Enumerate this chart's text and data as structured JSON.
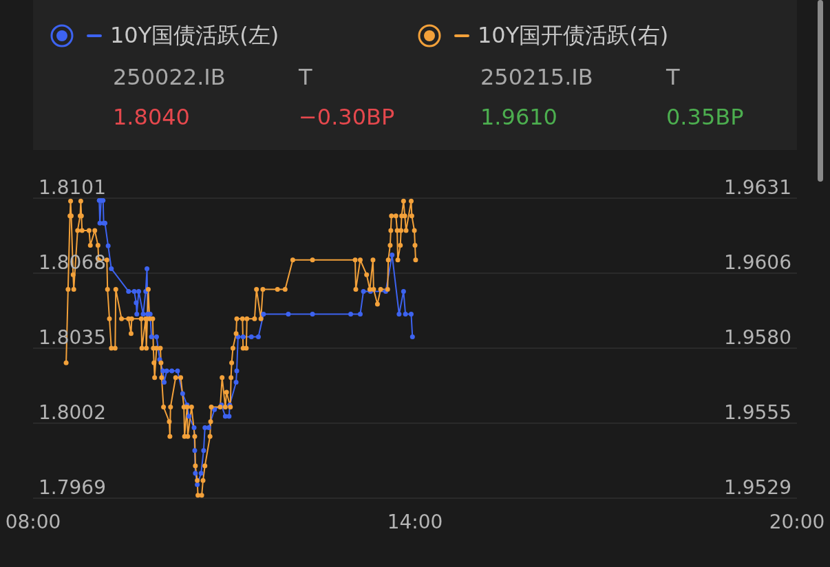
{
  "chart_data": {
    "type": "line",
    "legend": "top",
    "grid": "y",
    "marker": "circle",
    "line_style": "solid",
    "annotations": [
      "250022.IB",
      "T",
      "1.8040",
      "−0.30BP",
      "250215.IB",
      "T",
      "1.9610",
      "0.35BP"
    ],
    "xlim": [
      8,
      20
    ],
    "xticks": [
      {
        "value": 8,
        "label": "08:00"
      },
      {
        "value": 14,
        "label": "14:00"
      },
      {
        "value": 20,
        "label": "20:00"
      }
    ],
    "ylim": [
      1.7969,
      1.8101
    ],
    "yticks": [
      1.7969,
      1.8002,
      1.8035,
      1.8068,
      1.8101
    ],
    "y2lim": [
      1.9529,
      1.9631
    ],
    "y2ticks": [
      {
        "value": 1.9529,
        "label": "1.9529"
      },
      {
        "value": 1.95545,
        "label": "1.9555"
      },
      {
        "value": 1.958,
        "label": "1.9580"
      },
      {
        "value": 1.96055,
        "label": "1.9606"
      },
      {
        "value": 1.9631,
        "label": "1.9631"
      }
    ],
    "series": [
      {
        "name": "10Y国债活跃(左)",
        "color": "#3d63f0",
        "x": [
          9.04,
          9.05,
          9.07,
          9.1,
          9.11,
          9.13,
          9.18,
          9.23,
          9.5,
          9.59,
          9.62,
          9.63,
          9.66,
          9.73,
          9.77,
          9.79,
          9.8,
          9.84,
          9.86,
          9.94,
          9.99,
          10.04,
          10.06,
          10.1,
          10.18,
          10.27,
          10.35,
          10.42,
          10.45,
          10.53,
          10.54,
          10.55,
          10.58,
          10.64,
          10.68,
          10.7,
          10.76,
          10.85,
          10.96,
          11.02,
          11.08,
          11.09,
          11.19,
          11.2,
          11.22,
          11.3,
          11.43,
          11.54,
          11.62,
          12.01,
          12.39,
          12.99,
          13.14,
          13.19,
          13.3,
          13.54,
          13.64,
          13.75,
          13.82,
          13.85,
          13.94,
          13.96
        ],
        "values": [
          1.81,
          1.809,
          1.81,
          1.81,
          1.809,
          1.809,
          1.808,
          1.807,
          1.806,
          1.806,
          1.8055,
          1.805,
          1.806,
          1.805,
          1.806,
          1.807,
          1.805,
          1.805,
          1.804,
          1.804,
          1.803,
          1.8025,
          1.802,
          1.8025,
          1.8025,
          1.8025,
          1.8015,
          1.801,
          1.8005,
          1.8,
          1.799,
          1.798,
          1.7975,
          1.798,
          1.799,
          1.8,
          1.8,
          1.8008,
          1.801,
          1.8005,
          1.8005,
          1.801,
          1.802,
          1.8025,
          1.804,
          1.804,
          1.804,
          1.804,
          1.805,
          1.805,
          1.805,
          1.805,
          1.805,
          1.806,
          1.806,
          1.806,
          1.8076,
          1.805,
          1.806,
          1.805,
          1.805,
          1.804
        ]
      },
      {
        "name": "10Y国开债活跃(右)",
        "color": "#f3a13a",
        "axis": "y2",
        "x": [
          8.52,
          8.55,
          8.58,
          8.59,
          8.6,
          8.63,
          8.64,
          8.7,
          8.74,
          8.75,
          8.76,
          8.77,
          8.88,
          8.9,
          8.97,
          9.02,
          9.03,
          9.16,
          9.17,
          9.2,
          9.23,
          9.29,
          9.3,
          9.39,
          9.5,
          9.54,
          9.55,
          9.7,
          9.71,
          9.77,
          9.78,
          9.81,
          9.83,
          9.88,
          9.89,
          9.9,
          9.91,
          9.94,
          10.0,
          10.01,
          10.02,
          10.05,
          10.14,
          10.15,
          10.16,
          10.24,
          10.32,
          10.37,
          10.38,
          10.42,
          10.43,
          10.49,
          10.54,
          10.55,
          10.58,
          10.59,
          10.65,
          10.67,
          10.7,
          10.78,
          10.79,
          10.8,
          10.94,
          10.97,
          11.02,
          11.04,
          11.1,
          11.11,
          11.12,
          11.14,
          11.19,
          11.2,
          11.29,
          11.3,
          11.35,
          11.36,
          11.48,
          11.51,
          11.58,
          11.61,
          11.84,
          11.96,
          12.08,
          12.39,
          13.06,
          13.07,
          13.14,
          13.24,
          13.29,
          13.34,
          13.35,
          13.41,
          13.46,
          13.57,
          13.58,
          13.61,
          13.62,
          13.63,
          13.7,
          13.72,
          13.73,
          13.77,
          13.78,
          13.79,
          13.82,
          13.84,
          13.86,
          13.94,
          13.95,
          13.99,
          14.0,
          14.01
        ],
        "values": [
          1.9575,
          1.96,
          1.9625,
          1.963,
          1.9625,
          1.9605,
          1.96,
          1.962,
          1.9625,
          1.963,
          1.9625,
          1.962,
          1.962,
          1.9615,
          1.962,
          1.9615,
          1.961,
          1.961,
          1.96,
          1.959,
          1.958,
          1.958,
          1.96,
          1.959,
          1.959,
          1.9585,
          1.959,
          1.959,
          1.958,
          1.959,
          1.958,
          1.96,
          1.959,
          1.959,
          1.958,
          1.9575,
          1.957,
          1.958,
          1.958,
          1.9575,
          1.957,
          1.956,
          1.9555,
          1.955,
          1.956,
          1.957,
          1.957,
          1.956,
          1.955,
          1.956,
          1.955,
          1.956,
          1.955,
          1.954,
          1.9535,
          1.953,
          1.953,
          1.9535,
          1.954,
          1.955,
          1.9555,
          1.956,
          1.956,
          1.957,
          1.956,
          1.9565,
          1.956,
          1.957,
          1.9575,
          1.958,
          1.9585,
          1.959,
          1.959,
          1.958,
          1.958,
          1.959,
          1.959,
          1.96,
          1.959,
          1.96,
          1.96,
          1.96,
          1.961,
          1.961,
          1.961,
          1.96,
          1.961,
          1.9605,
          1.96,
          1.961,
          1.96,
          1.9595,
          1.96,
          1.96,
          1.961,
          1.9615,
          1.962,
          1.9625,
          1.9625,
          1.962,
          1.961,
          1.9615,
          1.962,
          1.9625,
          1.963,
          1.9625,
          1.962,
          1.963,
          1.9625,
          1.962,
          1.9615,
          1.961
        ]
      }
    ]
  }
}
